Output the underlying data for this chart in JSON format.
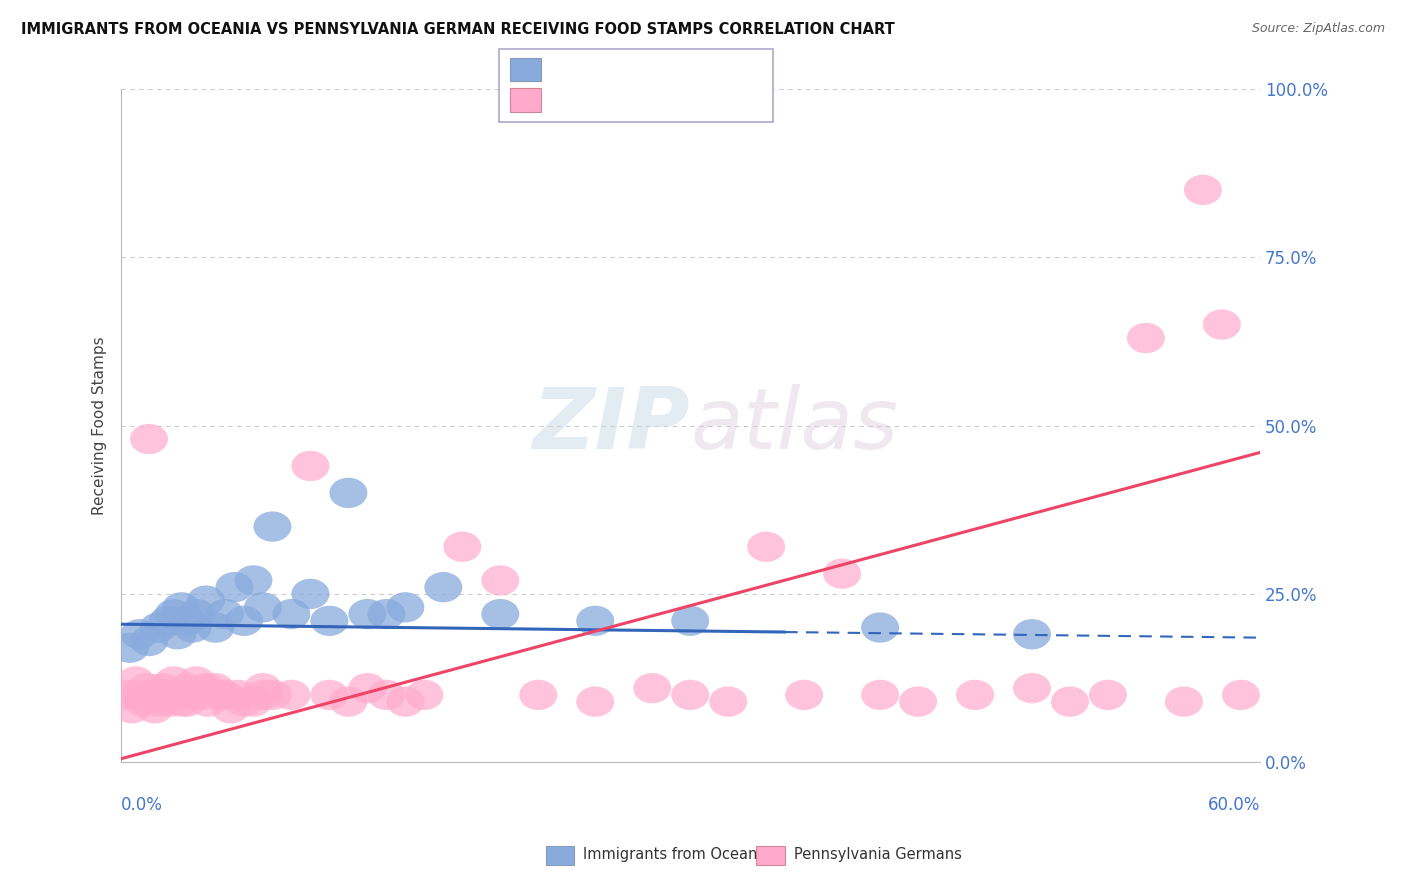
{
  "title": "IMMIGRANTS FROM OCEANIA VS PENNSYLVANIA GERMAN RECEIVING FOOD STAMPS CORRELATION CHART",
  "source": "Source: ZipAtlas.com",
  "ylabel": "Receiving Food Stamps",
  "ytick_vals": [
    0,
    25,
    50,
    75,
    100
  ],
  "ytick_labels": [
    "0.0%",
    "25.0%",
    "50.0%",
    "75.0%",
    "100.0%"
  ],
  "legend_label_oceania": "Immigrants from Oceania",
  "legend_label_pa_german": "Pennsylvania Germans",
  "color_oceania": "#88aadd",
  "color_pa_german": "#ffaacc",
  "line_color_oceania": "#3366bb",
  "line_color_pa_german": "#ee4466",
  "xlim": [
    0,
    60
  ],
  "ylim": [
    0,
    100
  ],
  "oceania_line_x0": 0,
  "oceania_line_y0": 20.5,
  "oceania_line_x1": 60,
  "oceania_line_y1": 18.5,
  "oceania_dash_x0": 35,
  "oceania_dash_x1": 60,
  "pa_line_x0": 0,
  "pa_line_y0": 0.5,
  "pa_line_x1": 60,
  "pa_line_y1": 46.0,
  "oceania_x": [
    0.5,
    1.0,
    1.5,
    2.0,
    2.5,
    2.8,
    3.0,
    3.2,
    3.5,
    3.8,
    4.0,
    4.5,
    5.0,
    5.5,
    6.0,
    6.5,
    7.0,
    7.5,
    8.0,
    9.0,
    10.0,
    11.0,
    12.0,
    13.0,
    14.0,
    15.0,
    17.0,
    20.0,
    25.0,
    30.0,
    40.0,
    48.0
  ],
  "oceania_y": [
    17,
    19,
    18,
    20,
    21,
    22,
    19,
    23,
    21,
    20,
    22,
    24,
    20,
    22,
    26,
    21,
    27,
    23,
    35,
    22,
    25,
    21,
    40,
    22,
    22,
    23,
    26,
    22,
    21,
    21,
    20,
    19
  ],
  "pa_x": [
    0.3,
    0.6,
    0.8,
    1.0,
    1.2,
    1.4,
    1.6,
    1.8,
    2.0,
    2.2,
    2.4,
    2.6,
    2.8,
    3.0,
    3.2,
    3.5,
    3.8,
    4.0,
    4.3,
    4.6,
    5.0,
    5.4,
    5.8,
    6.2,
    7.0,
    7.5,
    8.0,
    9.0,
    10.0,
    11.0,
    12.0,
    13.0,
    14.0,
    15.0,
    16.0,
    18.0,
    20.0,
    22.0,
    25.0,
    28.0,
    30.0,
    32.0,
    34.0,
    36.0,
    38.0,
    40.0,
    42.0,
    45.0,
    48.0,
    50.0,
    52.0,
    54.0,
    56.0,
    57.0,
    58.0,
    59.0,
    1.5,
    2.5,
    3.5,
    4.5,
    5.5,
    6.5,
    7.5
  ],
  "pa_y": [
    10,
    8,
    12,
    10,
    9,
    11,
    10,
    8,
    9,
    11,
    10,
    9,
    12,
    10,
    9,
    11,
    10,
    12,
    10,
    9,
    11,
    10,
    8,
    10,
    9,
    11,
    10,
    10,
    44,
    10,
    9,
    11,
    10,
    9,
    10,
    32,
    27,
    10,
    9,
    11,
    10,
    9,
    32,
    10,
    28,
    10,
    9,
    10,
    11,
    9,
    10,
    63,
    9,
    85,
    65,
    10,
    48,
    10,
    9,
    11,
    10,
    9,
    10
  ]
}
